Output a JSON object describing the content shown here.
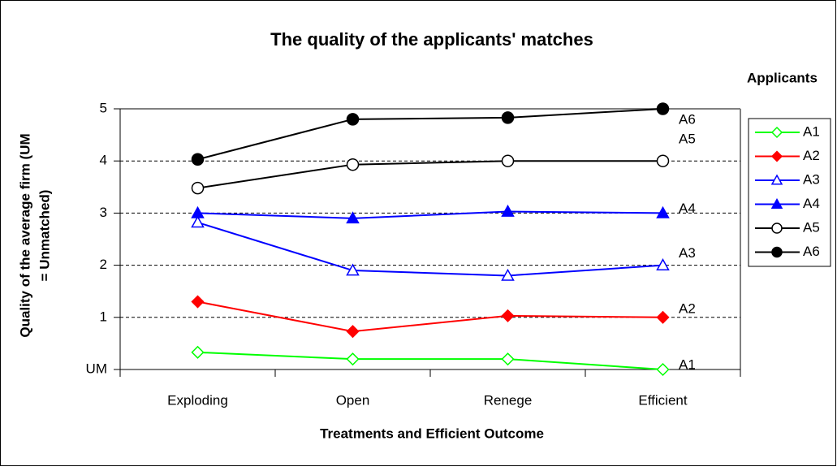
{
  "chart_data": {
    "type": "line",
    "title": "The quality of the applicants' matches",
    "x_label": "Treatments and Efficient Outcome",
    "y_label": [
      "Quality of the average firm (UM",
      "= Unmatched)"
    ],
    "legend_title": "Applicants",
    "legend": "right",
    "grid": true,
    "categories": [
      "Exploding",
      "Open",
      "Renege",
      "Efficient"
    ],
    "ylim": [
      0,
      5
    ],
    "yticks": [
      {
        "value": 0,
        "label": "UM"
      },
      1,
      2,
      3,
      4,
      5
    ],
    "series": [
      {
        "name": "A1",
        "color": "#00ff00",
        "marker": "diamond",
        "filled": false,
        "values": [
          0.33,
          0.2,
          0.2,
          0
        ]
      },
      {
        "name": "A2",
        "color": "#ff0000",
        "marker": "diamond",
        "filled": true,
        "values": [
          1.3,
          0.73,
          1.03,
          1
        ]
      },
      {
        "name": "A3",
        "color": "#0000ff",
        "marker": "triangle",
        "filled": false,
        "values": [
          2.82,
          1.9,
          1.8,
          2
        ]
      },
      {
        "name": "A4",
        "color": "#0000ff",
        "marker": "triangle",
        "filled": true,
        "values": [
          3.0,
          2.9,
          3.03,
          3
        ]
      },
      {
        "name": "A5",
        "color": "#000000",
        "marker": "circle",
        "filled": false,
        "values": [
          3.48,
          3.93,
          4.0,
          4
        ]
      },
      {
        "name": "A6",
        "color": "#000000",
        "marker": "circle",
        "filled": true,
        "values": [
          4.03,
          4.8,
          4.83,
          5
        ]
      }
    ]
  }
}
